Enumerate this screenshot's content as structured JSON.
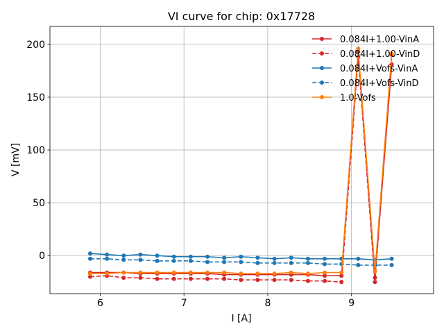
{
  "chart_data": {
    "type": "line",
    "title": "VI curve for chip: 0x17728",
    "xlabel": "I [A]",
    "ylabel": "V [mV]",
    "xlim": [
      5.4,
      9.98
    ],
    "ylim": [
      -36,
      217
    ],
    "xticks": [
      6,
      7,
      8,
      9
    ],
    "yticks": [
      0,
      50,
      100,
      150,
      200
    ],
    "grid": true,
    "legend_position": "top-right",
    "series": [
      {
        "name": "0.084I+1.00-VinA",
        "color": "#d62728",
        "linestyle": "solid",
        "x": [
          5.88,
          6.08,
          6.28,
          6.48,
          6.68,
          6.88,
          7.08,
          7.28,
          7.48,
          7.68,
          7.88,
          8.08,
          8.28,
          8.48,
          8.68,
          8.88,
          9.08,
          9.28,
          9.48
        ],
        "y": [
          -16,
          -16,
          -16,
          -17,
          -17,
          -17,
          -17,
          -17,
          -18,
          -18,
          -18,
          -18,
          -18,
          -18,
          -19,
          -19,
          193,
          -21,
          181
        ]
      },
      {
        "name": "0.084I+1.00-VinD",
        "color": "#d62728",
        "linestyle": "dashed",
        "x": [
          5.88,
          6.08,
          6.28,
          6.48,
          6.68,
          6.88,
          7.08,
          7.28,
          7.48,
          7.68,
          7.88,
          8.08,
          8.28,
          8.48,
          8.68,
          8.88,
          9.08,
          9.28,
          9.48
        ],
        "y": [
          -20,
          -19,
          -21,
          -21,
          -22,
          -22,
          -22,
          -22,
          -22,
          -23,
          -23,
          -23,
          -23,
          -24,
          -24,
          -25,
          188,
          -25,
          190
        ]
      },
      {
        "name": "0.084I+Vofs-VinA",
        "color": "#1f77b4",
        "linestyle": "solid",
        "x": [
          5.88,
          6.08,
          6.28,
          6.48,
          6.68,
          6.88,
          7.08,
          7.28,
          7.48,
          7.68,
          7.88,
          8.08,
          8.28,
          8.48,
          8.68,
          8.88,
          9.08,
          9.28,
          9.48
        ],
        "y": [
          2,
          1,
          0,
          1,
          0,
          -1,
          -1,
          -1,
          -2,
          -1,
          -2,
          -3,
          -2,
          -3,
          -3,
          -3,
          -3,
          -4,
          -3
        ]
      },
      {
        "name": "0.084I+Vofs-VinD",
        "color": "#1f77b4",
        "linestyle": "dashed",
        "x": [
          5.88,
          6.08,
          6.28,
          6.48,
          6.68,
          6.88,
          7.08,
          7.28,
          7.48,
          7.68,
          7.88,
          8.08,
          8.28,
          8.48,
          8.68,
          8.88,
          9.08,
          9.28,
          9.48
        ],
        "y": [
          -3,
          -3,
          -4,
          -4,
          -5,
          -5,
          -5,
          -6,
          -6,
          -6,
          -7,
          -7,
          -7,
          -7,
          -8,
          -8,
          -9,
          -9,
          -9
        ]
      },
      {
        "name": "1.0-Vofs",
        "color": "#ff7f0e",
        "linestyle": "solid",
        "x": [
          5.88,
          6.08,
          6.28,
          6.48,
          6.68,
          6.88,
          7.08,
          7.28,
          7.48,
          7.68,
          7.88,
          8.08,
          8.28,
          8.48,
          8.68,
          8.88,
          9.08,
          9.28,
          9.48
        ],
        "y": [
          -17,
          -17,
          -16,
          -16,
          -16,
          -16,
          -16,
          -16,
          -16,
          -17,
          -17,
          -17,
          -16,
          -17,
          -16,
          -16,
          196,
          -15,
          191
        ]
      }
    ]
  }
}
